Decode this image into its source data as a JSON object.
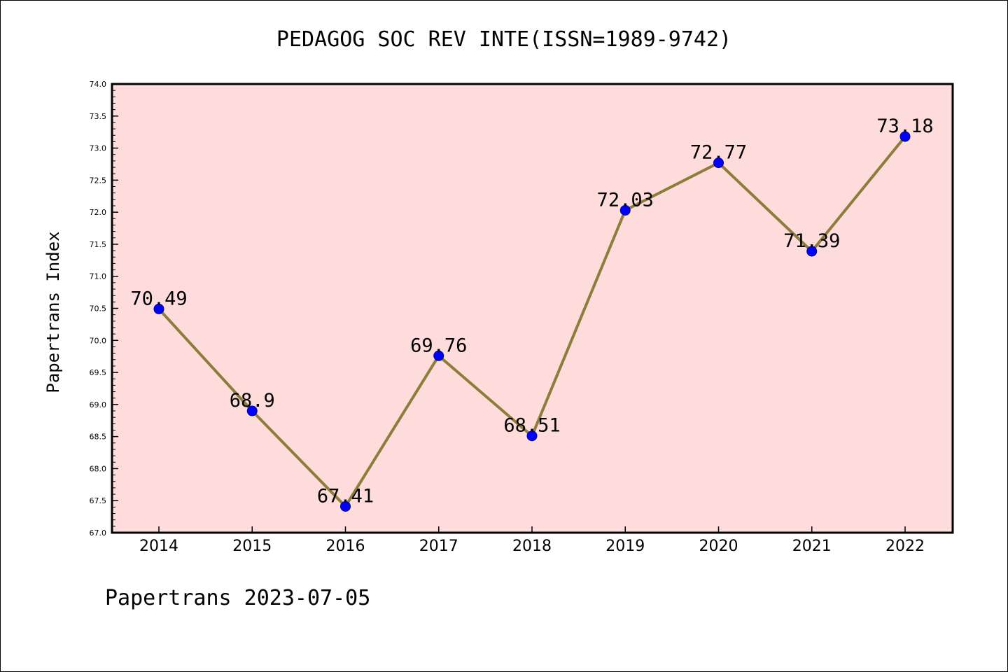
{
  "chart_data": {
    "type": "line",
    "title": "PEDAGOG SOC REV INTE(ISSN=1989-9742)",
    "ylabel": "Papertrans Index",
    "xlabel": "",
    "footer": "Papertrans 2023-07-05",
    "categories": [
      "2014",
      "2015",
      "2016",
      "2017",
      "2018",
      "2019",
      "2020",
      "2021",
      "2022"
    ],
    "values": [
      70.49,
      68.9,
      67.41,
      69.76,
      68.51,
      72.03,
      72.77,
      71.39,
      73.18
    ],
    "data_labels": [
      "70.49",
      "68.9",
      "67.41",
      "69.76",
      "68.51",
      "72.03",
      "72.77",
      "71.39",
      "73.18"
    ],
    "ylim": [
      67.0,
      74.0
    ],
    "yticks": [
      "67.0",
      "67.5",
      "68.0",
      "68.5",
      "69.0",
      "69.5",
      "70.0",
      "70.5",
      "71.0",
      "71.5",
      "72.0",
      "72.5",
      "73.0",
      "73.5",
      "74.0"
    ],
    "grid": false,
    "colors": {
      "plot_background": "#ffdcdc",
      "line": "#8b7d3a",
      "marker": "#0000ff"
    }
  }
}
